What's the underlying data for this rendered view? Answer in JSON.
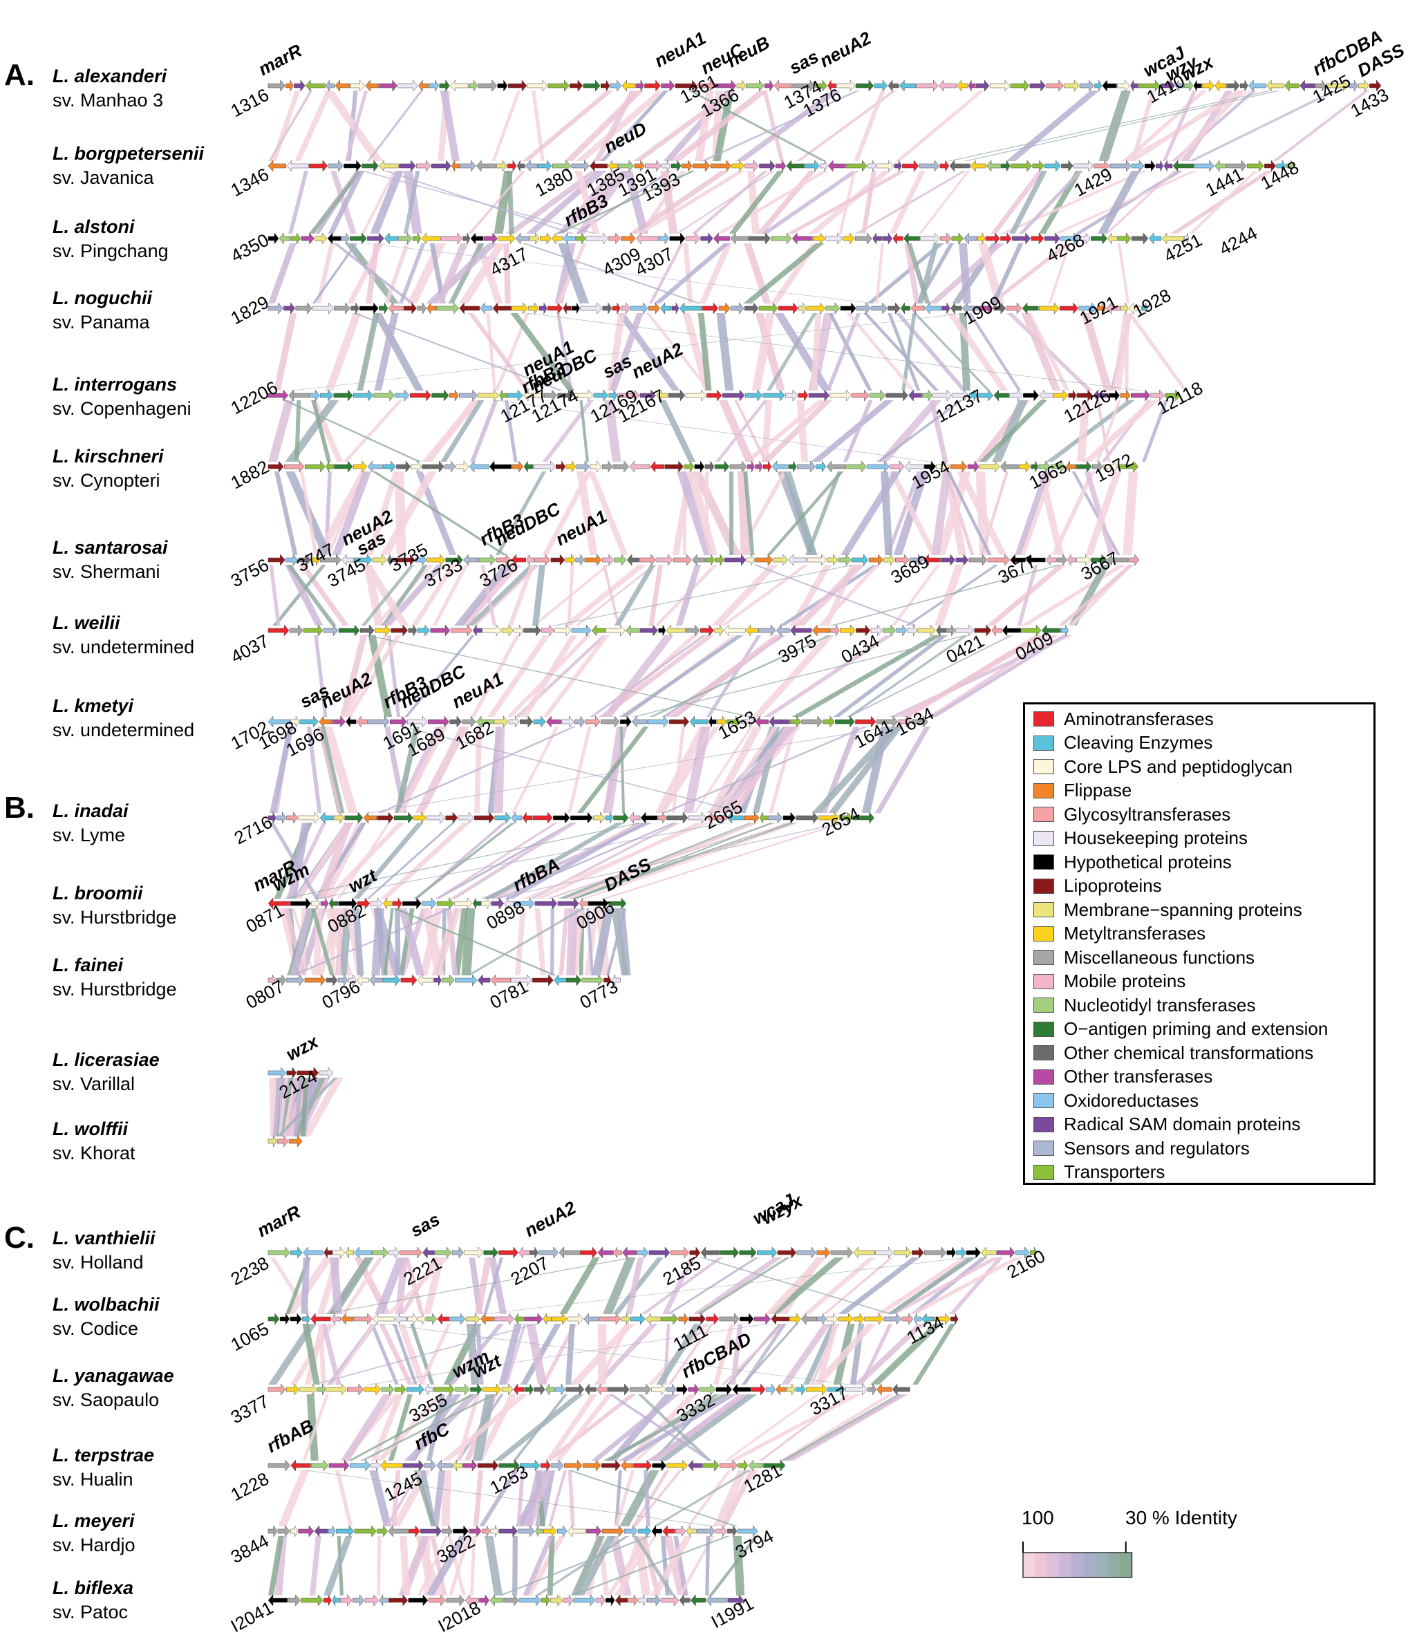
{
  "panels": [
    "A.",
    "B.",
    "C."
  ],
  "species": [
    {
      "name": "L. alexanderi",
      "sv": "sv. Manhao 3"
    },
    {
      "name": "L. borgpetersenii",
      "sv": "sv. Javanica"
    },
    {
      "name": "L. alstoni",
      "sv": "sv. Pingchang"
    },
    {
      "name": "L. noguchii",
      "sv": "sv. Panama"
    },
    {
      "name": "L. interrogans",
      "sv": "sv. Copenhageni"
    },
    {
      "name": "L. kirschneri",
      "sv": "sv. Cynopteri"
    },
    {
      "name": "L. santarosai",
      "sv": "sv. Shermani"
    },
    {
      "name": "L. weilii",
      "sv": "sv. undetermined"
    },
    {
      "name": "L. kmetyi",
      "sv": "sv. undetermined"
    },
    {
      "name": "L. inadai",
      "sv": "sv. Lyme"
    },
    {
      "name": "L. broomii",
      "sv": "sv. Hurstbridge"
    },
    {
      "name": "L. fainei",
      "sv": "sv. Hurstbridge"
    },
    {
      "name": "L. licerasiae",
      "sv": "sv. Varillal"
    },
    {
      "name": "L. wolffii",
      "sv": "sv. Khorat"
    },
    {
      "name": "L. vanthielii",
      "sv": "sv. Holland"
    },
    {
      "name": "L. wolbachii",
      "sv": "sv. Codice"
    },
    {
      "name": "L. yanagawae",
      "sv": "sv. Saopaulo"
    },
    {
      "name": "L. terpstrae",
      "sv": "sv. Hualin"
    },
    {
      "name": "L. meyeri",
      "sv": "sv. Hardjo"
    },
    {
      "name": "L. biflexa",
      "sv": "sv. Patoc"
    }
  ],
  "numbers": [
    "1316",
    "1361",
    "1366",
    "1374",
    "1376",
    "1410",
    "1425",
    "1433",
    "1346",
    "1380",
    "1385",
    "1391",
    "1393",
    "1429",
    "1441",
    "1448",
    "4350",
    "4317",
    "4309",
    "4307",
    "4268",
    "4251",
    "4244",
    "1829",
    "1909",
    "1921",
    "1928",
    "12206",
    "12177",
    "12174",
    "12169",
    "12167",
    "12137",
    "12126",
    "12118",
    "1882",
    "1954",
    "1965",
    "1972",
    "3756",
    "3747",
    "3745",
    "3735",
    "3733",
    "3726",
    "3689",
    "3677",
    "3667",
    "4037",
    "3975",
    "0434",
    "0421",
    "0409",
    "1702",
    "1698",
    "1696",
    "1691",
    "1689",
    "1682",
    "1653",
    "1641",
    "1634",
    "2716",
    "2665",
    "2654",
    "0871",
    "0882",
    "0898",
    "0906",
    "0807",
    "0796",
    "0781",
    "0773",
    "2124",
    "2238",
    "2221",
    "2207",
    "2185",
    "2160",
    "1065",
    "1111",
    "1134",
    "3377",
    "3355",
    "3332",
    "3317",
    "1228",
    "1245",
    "1253",
    "1281",
    "3844",
    "3822",
    "3794",
    "I2041",
    "I2018",
    "I1991"
  ],
  "genes": [
    "marR",
    "neuA1",
    "neuC",
    "neuB",
    "sas",
    "neuA2",
    "wcaJ",
    "wzy",
    "wzx",
    "rfbCDBA",
    "DASS",
    "neuD",
    "rfbB3",
    "neuA1",
    "rfbB3",
    "neuDBC",
    "sas",
    "neuA2",
    "neuA2",
    "sas",
    "rfbB3",
    "neuDBC",
    "neuA1",
    "sas",
    "neuA2",
    "rfbB3",
    "neuDBC",
    "neuA1",
    "marR",
    "wzm",
    "wzt",
    "rfbBA",
    "DASS",
    "wzx",
    "marR",
    "sas",
    "neuA2",
    "wcaJ",
    "wzyx",
    "wzm",
    "wzt",
    "rfbCBAD",
    "rfbAB",
    "rfbC"
  ],
  "legend": [
    {
      "label": "Aminotransferases",
      "color": "#e8262d"
    },
    {
      "label": "Cleaving Enzymes",
      "color": "#5bc2dc"
    },
    {
      "label": "Core LPS and peptidoglycan",
      "color": "#fdf6dc"
    },
    {
      "label": "Flippase",
      "color": "#f2852a"
    },
    {
      "label": "Glycosyltransferases",
      "color": "#f4a2a5"
    },
    {
      "label": "Housekeeping proteins",
      "color": "#ece6f4"
    },
    {
      "label": "Hypothetical proteins",
      "color": "#000000"
    },
    {
      "label": "Lipoproteins",
      "color": "#8b1a1a"
    },
    {
      "label": "Membrane−spanning proteins",
      "color": "#ece47c"
    },
    {
      "label": "Metyltransferases",
      "color": "#fdd21e"
    },
    {
      "label": "Miscellaneous functions",
      "color": "#a6a6a6"
    },
    {
      "label": "Mobile proteins",
      "color": "#f2b5cc"
    },
    {
      "label": "Nucleotidyl transferases",
      "color": "#a3d07e"
    },
    {
      "label": "O−antigen priming and extension",
      "color": "#2f7d33"
    },
    {
      "label": "Other chemical transformations",
      "color": "#6b6b6b"
    },
    {
      "label": "Other transferases",
      "color": "#b74aa2"
    },
    {
      "label": "Oxidoreductases",
      "color": "#8cc6ec"
    },
    {
      "label": "Radical SAM domain proteins",
      "color": "#7a4a9c"
    },
    {
      "label": "Sensors and regulators",
      "color": "#aab8d4"
    },
    {
      "label": "Transporters",
      "color": "#8dbf3a"
    }
  ],
  "scale": {
    "min_label": "100",
    "max_label": "30 % Identity",
    "colors": [
      "#f4d3dd",
      "#ecc6d8",
      "#dcc0db",
      "#cbb8d8",
      "#b8b0d2",
      "#a8aec8",
      "#9fb1b8",
      "#93aca2",
      "#88a892"
    ]
  }
}
